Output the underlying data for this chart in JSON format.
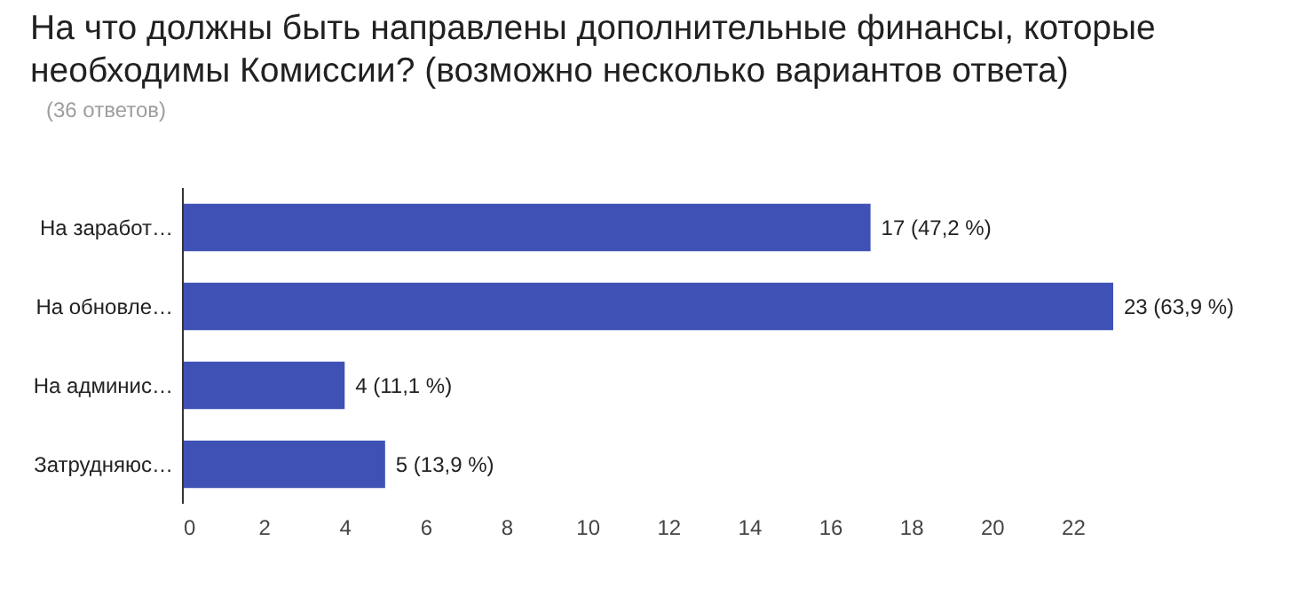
{
  "chart_data": {
    "type": "bar",
    "orientation": "horizontal",
    "title": "На что должны быть направлены дополнительные финансы, которые необходимы Комиссии? (возможно несколько вариантов ответа)",
    "subtitle": "(36 ответов)",
    "categories": [
      "На заработ…",
      "На обновле…",
      "На админис…",
      "Затрудняюс…"
    ],
    "values": [
      17,
      23,
      4,
      5
    ],
    "value_labels": [
      "17 (47,2 %)",
      "23 (63,9 %)",
      "4 (11,1 %)",
      "5 (13,9 %)"
    ],
    "color": "#3f51b5",
    "xlim": [
      0,
      23
    ],
    "xticks": [
      0,
      2,
      4,
      6,
      8,
      10,
      12,
      14,
      16,
      18,
      20,
      22
    ],
    "grid": false
  }
}
